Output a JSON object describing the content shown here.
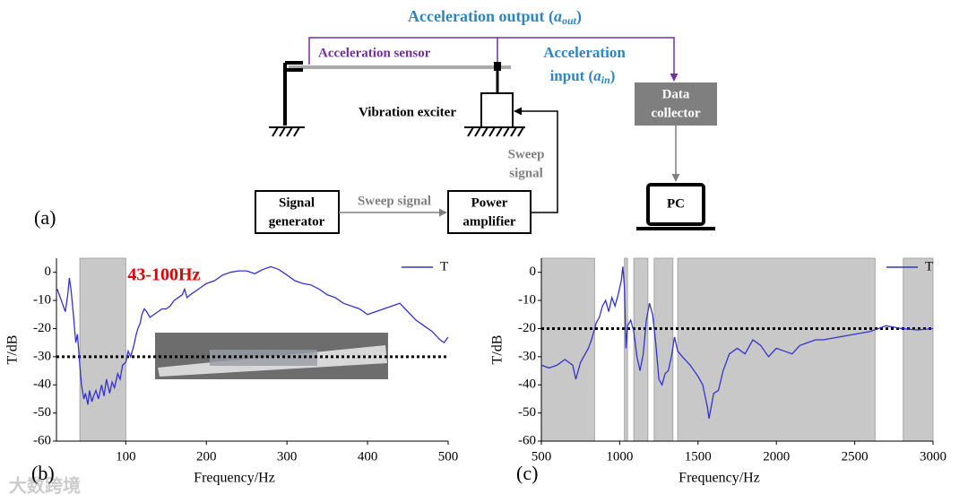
{
  "diagram": {
    "panel_label": "(a)",
    "output_label": {
      "text": "Acceleration output (",
      "symbol": "a",
      "sub": "out",
      "end": ")"
    },
    "sensor_label": "Acceleration sensor",
    "input_label": {
      "line1": "Acceleration",
      "text": "input (",
      "symbol": "a",
      "sub": "in",
      "end": ")"
    },
    "exciter_label": "Vibration exciter",
    "collector_label": [
      "Data",
      "collector"
    ],
    "sweep_vertical": [
      "Sweep",
      "signal"
    ],
    "sweep_horizontal": "Sweep signal",
    "generator_label": [
      "Signal",
      "generator"
    ],
    "amplifier_label": [
      "Power",
      "amplifier"
    ],
    "pc_label": "PC"
  },
  "watermark": "大数跨境",
  "chart_data": [
    {
      "type": "line",
      "panel_label": "(b)",
      "xlabel": "Frequency/Hz",
      "ylabel": "T/dB",
      "annotation": "43-100Hz",
      "xlim": [
        14,
        500
      ],
      "xticks": [
        100,
        200,
        300,
        400,
        500
      ],
      "ylim": [
        -60,
        5
      ],
      "yticks": [
        0,
        -10,
        -20,
        -30,
        -40,
        -50,
        -60
      ],
      "bands": [
        [
          43,
          100
        ]
      ],
      "threshold": -30,
      "legend": "top-right",
      "x": [
        15,
        20,
        25,
        28,
        30,
        32,
        35,
        38,
        40,
        43,
        45,
        48,
        50,
        53,
        55,
        58,
        60,
        63,
        66,
        70,
        73,
        76,
        80,
        83,
        86,
        90,
        93,
        96,
        100,
        103,
        106,
        110,
        113,
        115,
        118,
        120,
        123,
        126,
        130,
        135,
        140,
        145,
        150,
        155,
        160,
        165,
        170,
        173,
        176,
        180,
        190,
        200,
        210,
        220,
        230,
        240,
        250,
        260,
        270,
        280,
        290,
        300,
        310,
        320,
        330,
        340,
        350,
        360,
        370,
        380,
        390,
        400,
        410,
        420,
        430,
        440,
        450,
        460,
        470,
        480,
        490,
        495,
        500
      ],
      "series": [
        {
          "name": "T",
          "color": "#3333cc",
          "values": [
            -6,
            -10,
            -14,
            -8,
            -2,
            -6,
            -15,
            -25,
            -22,
            -33,
            -40,
            -45,
            -43,
            -47,
            -42,
            -46,
            -44,
            -42,
            -45,
            -40,
            -44,
            -38,
            -43,
            -39,
            -41,
            -36,
            -38,
            -33,
            -32,
            -28,
            -30,
            -26,
            -22,
            -20,
            -18,
            -15,
            -13,
            -14,
            -16,
            -15,
            -14,
            -13,
            -13,
            -12,
            -10,
            -9,
            -8,
            -6,
            -9,
            -8,
            -6,
            -4,
            -3,
            -1,
            0,
            0.5,
            0.5,
            -0.5,
            1,
            2,
            1,
            -1,
            -3,
            -4,
            -4.5,
            -6,
            -8,
            -9,
            -11,
            -12,
            -13,
            -15,
            -14,
            -13,
            -12,
            -11,
            -14,
            -17,
            -19,
            -21,
            -24,
            -25,
            -23
          ]
        }
      ]
    },
    {
      "type": "line",
      "panel_label": "(c)",
      "xlabel": "Frequency/Hz",
      "ylabel": "T/dB",
      "xlim": [
        500,
        3000
      ],
      "xticks": [
        500,
        1000,
        1500,
        2000,
        2500,
        3000
      ],
      "ylim": [
        -60,
        5
      ],
      "yticks": [
        0,
        -10,
        -20,
        -30,
        -40,
        -50,
        -60
      ],
      "bands": [
        [
          500,
          840
        ],
        [
          1030,
          1050
        ],
        [
          1090,
          1180
        ],
        [
          1220,
          1340
        ],
        [
          1370,
          2630
        ],
        [
          2810,
          3000
        ]
      ],
      "threshold": -20,
      "legend": "top-right",
      "x": [
        500,
        550,
        600,
        650,
        700,
        720,
        750,
        780,
        800,
        820,
        850,
        870,
        890,
        910,
        930,
        950,
        970,
        990,
        1010,
        1020,
        1030,
        1040,
        1050,
        1070,
        1090,
        1110,
        1130,
        1150,
        1170,
        1180,
        1190,
        1210,
        1230,
        1250,
        1270,
        1290,
        1310,
        1330,
        1350,
        1370,
        1400,
        1450,
        1500,
        1530,
        1560,
        1570,
        1600,
        1630,
        1660,
        1700,
        1750,
        1800,
        1850,
        1900,
        1950,
        2000,
        2050,
        2100,
        2150,
        2200,
        2250,
        2300,
        2400,
        2500,
        2600,
        2650,
        2700,
        2750,
        2800,
        2900,
        3000
      ],
      "series": [
        {
          "name": "T",
          "color": "#3333cc",
          "values": [
            -33,
            -34,
            -33,
            -31,
            -33,
            -38,
            -32,
            -29,
            -27,
            -24,
            -18,
            -16,
            -12,
            -10,
            -14,
            -9,
            -12,
            -8,
            -3,
            2,
            -5,
            -27,
            -19,
            -17,
            -21,
            -30,
            -35,
            -29,
            -17,
            -14,
            -11,
            -15,
            -25,
            -38,
            -40,
            -36,
            -35,
            -30,
            -23,
            -28,
            -30,
            -33,
            -37,
            -40,
            -48,
            -52,
            -43,
            -42,
            -35,
            -29,
            -27,
            -29,
            -24,
            -26,
            -30,
            -27,
            -28,
            -29,
            -26,
            -25,
            -24,
            -24,
            -23,
            -22,
            -21,
            -20,
            -19,
            -19.5,
            -20,
            -20.5,
            -20
          ]
        }
      ]
    }
  ]
}
